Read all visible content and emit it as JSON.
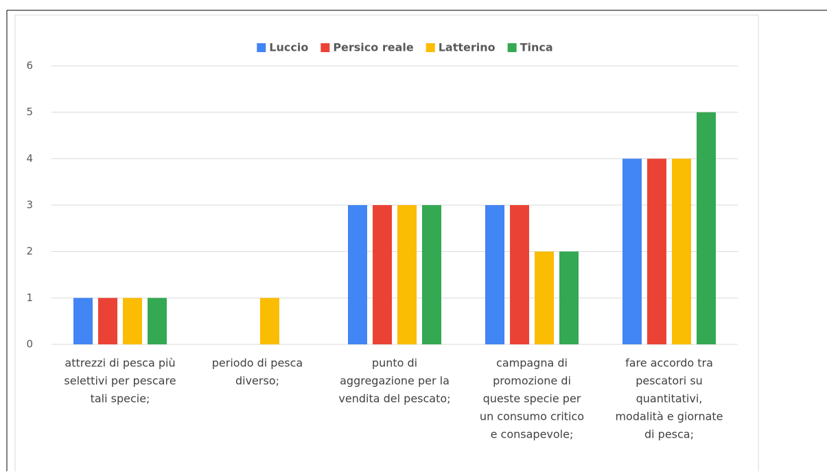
{
  "chart_data": {
    "type": "bar",
    "categories": [
      [
        "attrezzi di pesca più",
        "selettivi per pescare",
        "tali specie;"
      ],
      [
        "periodo di pesca",
        "diverso;"
      ],
      [
        "punto di",
        "aggregazione per la",
        "vendita del pescato;"
      ],
      [
        "campagna di",
        "promozione di",
        "queste specie per",
        "un consumo critico",
        "e consapevole;"
      ],
      [
        "fare accordo tra",
        "pescatori su",
        "quantitativi,",
        "modalità e giornate",
        "di pesca;"
      ]
    ],
    "series": [
      {
        "name": "Luccio",
        "color": "#4285f4",
        "values": [
          1,
          0,
          3,
          3,
          4
        ]
      },
      {
        "name": "Persico reale",
        "color": "#ea4335",
        "values": [
          1,
          0,
          3,
          3,
          4
        ]
      },
      {
        "name": "Latterino",
        "color": "#fbbc04",
        "values": [
          1,
          1,
          3,
          2,
          4
        ]
      },
      {
        "name": "Tinca",
        "color": "#34a853",
        "values": [
          1,
          0,
          3,
          2,
          5
        ]
      }
    ],
    "ylim": [
      0,
      6
    ],
    "yticks": [
      0,
      1,
      2,
      3,
      4,
      5,
      6
    ],
    "grid": true,
    "legend": "top"
  }
}
